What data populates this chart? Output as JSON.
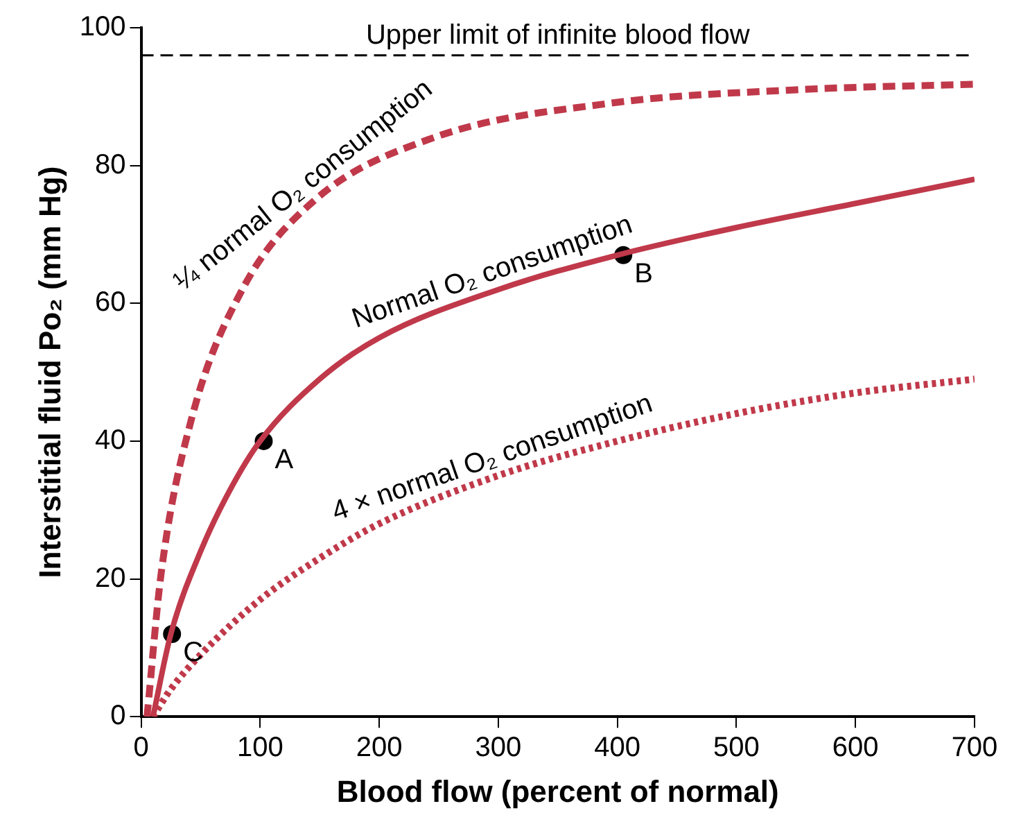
{
  "chart_data": {
    "type": "line",
    "xlabel": "Blood flow (percent of normal)",
    "ylabel": "Interstitial fluid Po₂ (mm Hg)",
    "xlim": [
      0,
      700
    ],
    "xticks": [
      0,
      100,
      200,
      300,
      400,
      500,
      600,
      700
    ],
    "ylim": [
      0,
      100
    ],
    "yticks": [
      0,
      20,
      40,
      60,
      80,
      100
    ],
    "grid": false,
    "legend": false,
    "series": [
      {
        "name": "¼ normal O₂ consumption",
        "color": "#c0394a",
        "line_style": "dashed",
        "x": [
          5,
          17,
          42,
          85,
          146,
          245,
          392,
          550,
          700
        ],
        "values": [
          0,
          21,
          43,
          62,
          75,
          84,
          89,
          91,
          91.8
        ]
      },
      {
        "name": "Normal O₂ consumption",
        "color": "#c0394a",
        "line_style": "solid",
        "x": [
          10,
          25,
          50,
          75,
          100,
          150,
          200,
          300,
          400,
          500,
          600,
          700
        ],
        "values": [
          0,
          12,
          24,
          33,
          40,
          49,
          55,
          62,
          67,
          71,
          74.5,
          78
        ]
      },
      {
        "name": "4 × normal O₂ consumption",
        "color": "#c0394a",
        "line_style": "dotted",
        "x": [
          10,
          25,
          50,
          100,
          150,
          200,
          300,
          400,
          500,
          600,
          700
        ],
        "values": [
          0,
          4,
          9,
          17,
          23,
          28,
          35,
          40,
          44,
          47,
          49
        ]
      },
      {
        "type": "scatter",
        "color": "#000000",
        "marker": "circle",
        "x": [
          26,
          103,
          405
        ],
        "values": [
          12,
          40,
          67
        ]
      }
    ],
    "annotations": [
      {
        "text": "C",
        "x": 26,
        "y": 12
      },
      {
        "text": "A",
        "x": 103,
        "y": 40
      },
      {
        "text": "B",
        "x": 405,
        "y": 67
      }
    ],
    "ref_lines": [
      {
        "axis": "y",
        "value": 96,
        "label": "Upper limit of infinite blood flow",
        "color": "#000000",
        "line_style": "dashed"
      }
    ]
  }
}
